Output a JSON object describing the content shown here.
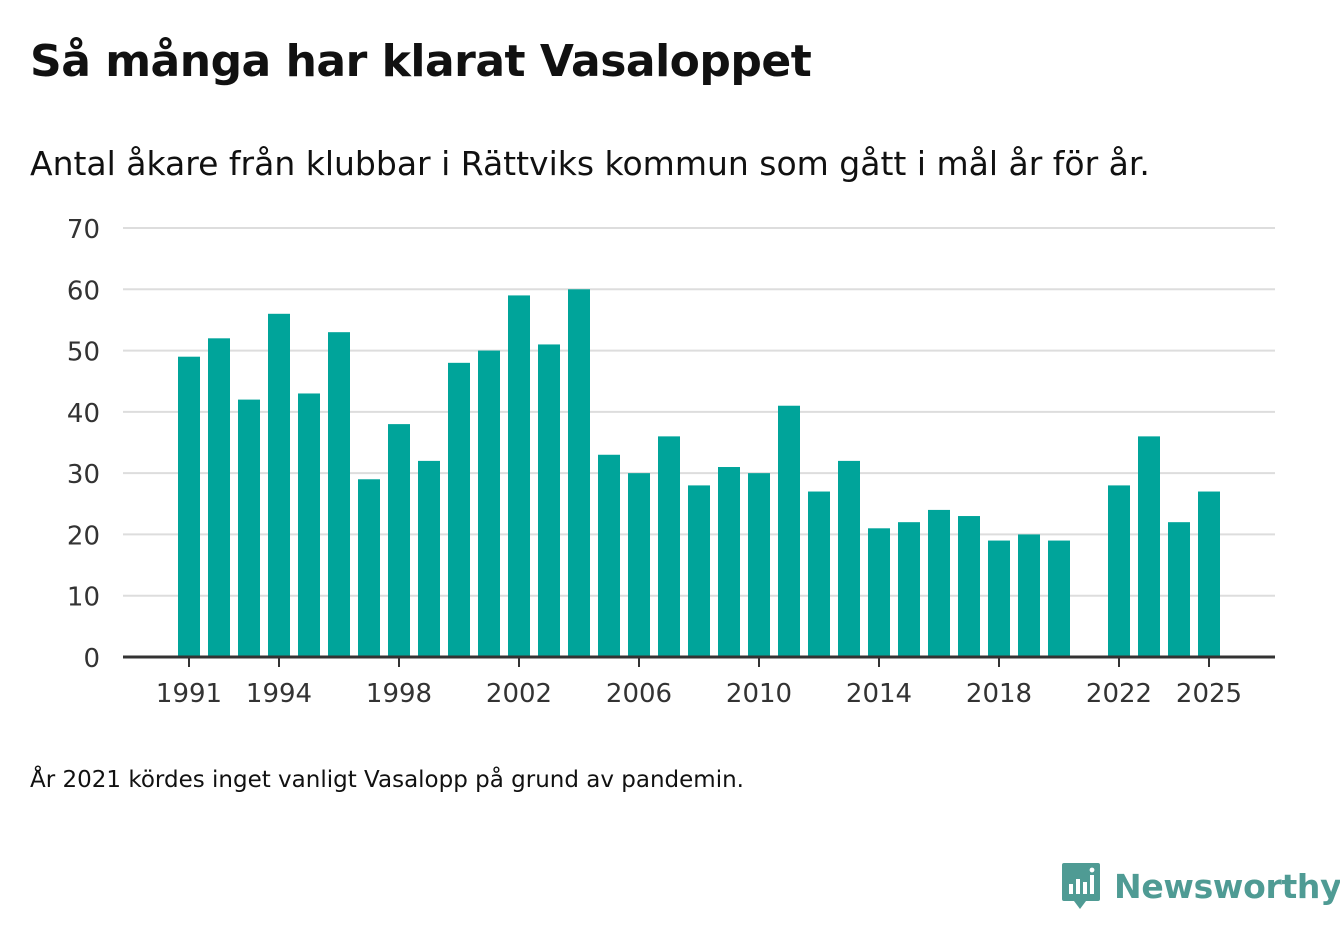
{
  "title": "Så många har klarat Vasaloppet",
  "subtitle": "Antal åkare från klubbar i Rättviks kommun som gått i mål år för år.",
  "note": "År 2021 kördes inget vanligt Vasalopp på grund av pandemin.",
  "brand": {
    "name": "Newsworthy",
    "icon": "newsworthy-logo-icon"
  },
  "colors": {
    "bar": "#00a49a",
    "grid": "#dddddd",
    "axis": "#333333",
    "brand": "#4f9b94"
  },
  "chart_data": {
    "type": "bar",
    "title": "Så många har klarat Vasaloppet",
    "xlabel": "",
    "ylabel": "",
    "ylim": [
      0,
      70
    ],
    "yticks": [
      0,
      10,
      20,
      30,
      40,
      50,
      60,
      70
    ],
    "xtick_labels": [
      "1991",
      "1994",
      "1998",
      "2002",
      "2006",
      "2010",
      "2014",
      "2018",
      "2022",
      "2025"
    ],
    "grid": true,
    "categories": [
      1991,
      1992,
      1993,
      1994,
      1995,
      1996,
      1997,
      1998,
      1999,
      2000,
      2001,
      2002,
      2003,
      2004,
      2005,
      2006,
      2007,
      2008,
      2009,
      2010,
      2011,
      2012,
      2013,
      2014,
      2015,
      2016,
      2017,
      2018,
      2019,
      2020,
      2021,
      2022,
      2023,
      2024,
      2025
    ],
    "values": [
      49,
      52,
      42,
      56,
      43,
      53,
      29,
      38,
      32,
      48,
      50,
      59,
      51,
      60,
      33,
      30,
      36,
      28,
      31,
      30,
      41,
      27,
      32,
      21,
      22,
      24,
      23,
      19,
      20,
      19,
      null,
      28,
      36,
      22,
      27
    ]
  }
}
